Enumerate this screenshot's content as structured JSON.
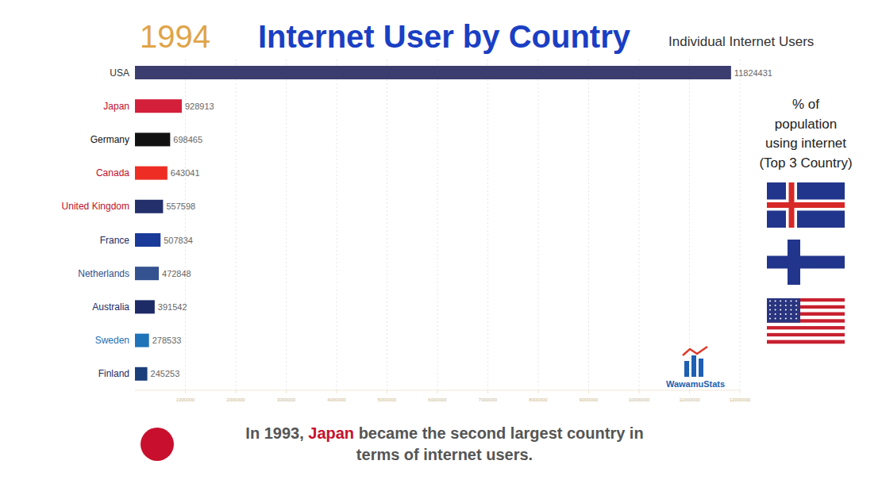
{
  "chart_data": {
    "type": "bar",
    "orientation": "horizontal",
    "year": "1994",
    "title": "Internet User by Country",
    "subtitle": "Individual Internet Users",
    "categories": [
      "USA",
      "Japan",
      "Germany",
      "Canada",
      "United Kingdom",
      "France",
      "Netherlands",
      "Australia",
      "Sweden",
      "Finland"
    ],
    "values": [
      11824431,
      928913,
      698465,
      643041,
      557598,
      507834,
      472848,
      391542,
      278533,
      245253
    ],
    "colors": [
      "#3b3d6e",
      "#d41f3a",
      "#111111",
      "#ee2d24",
      "#24306b",
      "#1a3a9a",
      "#33528f",
      "#1c2a66",
      "#1f73b8",
      "#1a3f7a"
    ],
    "data_labels": true,
    "grid": true,
    "xlim": [
      0,
      12000000
    ],
    "xticks": [
      1000000,
      2000000,
      3000000,
      4000000,
      5000000,
      6000000,
      7000000,
      8000000,
      9000000,
      10000000,
      11000000,
      12000000
    ],
    "side_panel": {
      "lines": [
        "% of",
        "population",
        "using internet",
        "(Top 3 Country)"
      ]
    },
    "logo": "WawamuStats",
    "annotation": {
      "prefix": "In 1993, ",
      "highlight": "Japan",
      "rest": " became the second largest country in",
      "line2": "terms of internet users."
    }
  }
}
